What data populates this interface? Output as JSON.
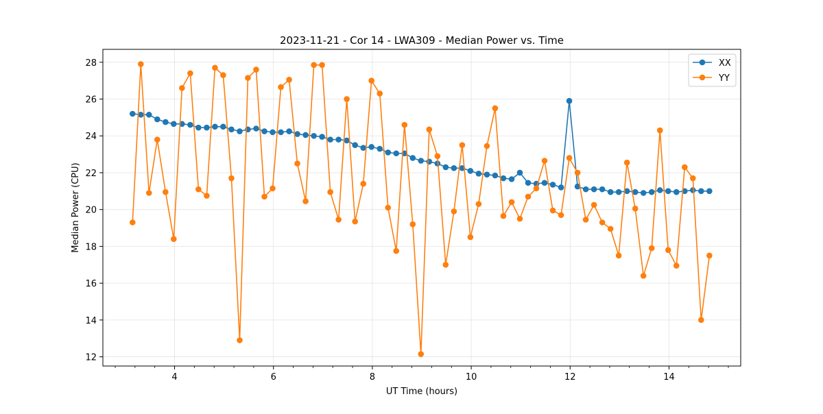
{
  "chart_data": {
    "type": "line",
    "title": "2023-11-21 - Cor 14 - LWA309 - Median Power vs. Time",
    "xlabel": "UT Time (hours)",
    "ylabel": "Median Power (CPU)",
    "xlim": [
      2.55,
      15.45
    ],
    "ylim": [
      11.5,
      28.7
    ],
    "xticks": [
      4,
      6,
      8,
      10,
      12,
      14
    ],
    "yticks": [
      12,
      14,
      16,
      18,
      20,
      22,
      24,
      26,
      28
    ],
    "xminor_step": 0.4,
    "grid": true,
    "legend_position": "top-right",
    "x": [
      3.15,
      3.317,
      3.483,
      3.65,
      3.817,
      3.983,
      4.15,
      4.317,
      4.483,
      4.65,
      4.817,
      4.983,
      5.15,
      5.317,
      5.483,
      5.65,
      5.817,
      5.983,
      6.15,
      6.317,
      6.483,
      6.65,
      6.817,
      6.983,
      7.15,
      7.317,
      7.483,
      7.65,
      7.817,
      7.983,
      8.15,
      8.317,
      8.483,
      8.65,
      8.817,
      8.983,
      9.15,
      9.317,
      9.483,
      9.65,
      9.817,
      9.983,
      10.15,
      10.317,
      10.483,
      10.65,
      10.817,
      10.983,
      11.15,
      11.317,
      11.483,
      11.65,
      11.817,
      11.983,
      12.15,
      12.317,
      12.483,
      12.65,
      12.817,
      12.983,
      13.15,
      13.317,
      13.483,
      13.65,
      13.817,
      13.983,
      14.15,
      14.317,
      14.483,
      14.65,
      14.817
    ],
    "series": [
      {
        "name": "XX",
        "color": "#1f77b4",
        "values": [
          25.2,
          25.15,
          25.15,
          24.9,
          24.75,
          24.65,
          24.65,
          24.6,
          24.45,
          24.45,
          24.5,
          24.5,
          24.35,
          24.25,
          24.35,
          24.4,
          24.25,
          24.2,
          24.2,
          24.25,
          24.1,
          24.05,
          24.0,
          23.95,
          23.8,
          23.8,
          23.75,
          23.5,
          23.35,
          23.4,
          23.3,
          23.1,
          23.05,
          23.05,
          22.8,
          22.65,
          22.6,
          22.5,
          22.3,
          22.25,
          22.25,
          22.1,
          21.95,
          21.9,
          21.85,
          21.7,
          21.65,
          22.0,
          21.45,
          21.4,
          21.45,
          21.35,
          21.2,
          25.9,
          21.25,
          21.1,
          21.1,
          21.1,
          20.95,
          20.95,
          21.0,
          20.95,
          20.9,
          20.95,
          21.05,
          21.0,
          20.95,
          21.0,
          21.05,
          21.0,
          21.0
        ]
      },
      {
        "name": "YY",
        "color": "#ff7f0e",
        "values": [
          19.3,
          27.9,
          20.9,
          23.8,
          20.95,
          18.4,
          26.6,
          27.4,
          21.1,
          20.75,
          27.7,
          27.3,
          21.7,
          12.9,
          27.15,
          27.6,
          20.7,
          21.15,
          26.65,
          27.05,
          22.5,
          20.45,
          27.85,
          27.85,
          20.95,
          19.45,
          26.0,
          19.35,
          21.4,
          27.0,
          26.3,
          20.1,
          17.75,
          24.6,
          19.2,
          12.15,
          24.35,
          22.9,
          17.0,
          19.9,
          23.5,
          18.5,
          20.3,
          23.45,
          25.5,
          19.65,
          20.4,
          19.5,
          20.7,
          21.15,
          22.65,
          19.95,
          19.7,
          22.8,
          22.0,
          19.45,
          20.25,
          19.3,
          18.95,
          17.5,
          22.55,
          20.05,
          16.4,
          17.9,
          24.3,
          17.8,
          16.95,
          22.3,
          21.7,
          14.0,
          17.5
        ]
      }
    ]
  }
}
